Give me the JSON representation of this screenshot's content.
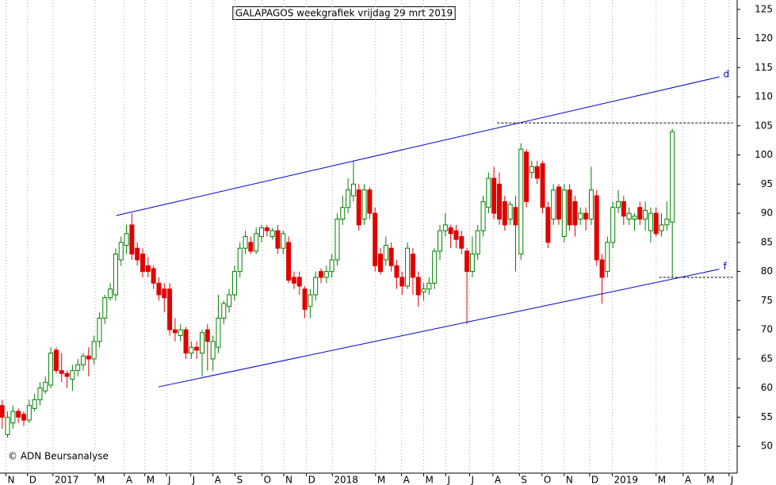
{
  "chart_data": {
    "type": "candlestick",
    "title": "GALAPAGOS weekgrafiek vrijdag 29 mrt 2019",
    "copyright": "© ADN Beursanalyse",
    "up_color": "#008000",
    "down_color": "#e00000",
    "line_color": "#0000cc",
    "grid": true,
    "xlim": [
      -0.4,
      136
    ],
    "xticks": [
      {
        "value": 0.7,
        "label": "N"
      },
      {
        "value": 4.7,
        "label": "D"
      },
      {
        "value": 9.4,
        "label": "2017"
      },
      {
        "value": 17.2,
        "label": "M"
      },
      {
        "value": 22.6,
        "label": "A"
      },
      {
        "value": 26.4,
        "label": "M"
      },
      {
        "value": 30.4,
        "label": "J"
      },
      {
        "value": 34.9,
        "label": "J"
      },
      {
        "value": 39,
        "label": "A"
      },
      {
        "value": 43.1,
        "label": "S"
      },
      {
        "value": 48.1,
        "label": "O"
      },
      {
        "value": 52.1,
        "label": "N"
      },
      {
        "value": 56.3,
        "label": "D"
      },
      {
        "value": 61.1,
        "label": "2018"
      },
      {
        "value": 69.1,
        "label": "M"
      },
      {
        "value": 73.9,
        "label": "A"
      },
      {
        "value": 78,
        "label": "M"
      },
      {
        "value": 82.1,
        "label": "J"
      },
      {
        "value": 86.5,
        "label": "J"
      },
      {
        "value": 90.8,
        "label": "A"
      },
      {
        "value": 95.7,
        "label": "S"
      },
      {
        "value": 99.9,
        "label": "O"
      },
      {
        "value": 104,
        "label": "N"
      },
      {
        "value": 108.7,
        "label": "D"
      },
      {
        "value": 112.9,
        "label": "2019"
      },
      {
        "value": 121,
        "label": "M"
      },
      {
        "value": 126,
        "label": "A"
      },
      {
        "value": 130,
        "label": "M"
      },
      {
        "value": 134.5,
        "label": "J"
      }
    ],
    "ylim": [
      45.4,
      126.6
    ],
    "yticks": [
      50,
      55,
      60,
      65,
      70,
      75,
      80,
      85,
      90,
      95,
      100,
      105,
      110,
      115,
      120,
      125
    ],
    "open": [
      57,
      52,
      54,
      56,
      55.5,
      54.5,
      56.5,
      58,
      59.5,
      60.5,
      66.5,
      63,
      62.5,
      61.5,
      63,
      64,
      65.5,
      65,
      68,
      72,
      75.5,
      76,
      82,
      84.5,
      88,
      84,
      83,
      81,
      80.5,
      78,
      77,
      77,
      70,
      69,
      70,
      66,
      67,
      66,
      70,
      65,
      67,
      72,
      74,
      76,
      80,
      84,
      85,
      83.5,
      86,
      87.5,
      86,
      87,
      84,
      85,
      79,
      79,
      77,
      74,
      76,
      80,
      79,
      80,
      82,
      89,
      91,
      93,
      94,
      89,
      94,
      90,
      83,
      82,
      84,
      81,
      79,
      77.5,
      83,
      79,
      76.5,
      77,
      78,
      83.5,
      87,
      87.5,
      87,
      86,
      83.5,
      80,
      83,
      87,
      91,
      96,
      95,
      92,
      89,
      91,
      83,
      100.5,
      97,
      98,
      98.5,
      91,
      89,
      94.5,
      86,
      94,
      92,
      89,
      90,
      89,
      93,
      82,
      80,
      85,
      91,
      92,
      89,
      89,
      91,
      89,
      87,
      90,
      87,
      88,
      88.5
    ],
    "high": [
      58,
      56,
      57,
      56.5,
      56,
      58,
      59,
      61,
      62,
      67,
      67,
      66,
      63,
      64,
      65,
      66,
      67,
      69,
      73,
      76,
      78,
      84,
      86,
      88,
      90,
      85,
      84,
      82.5,
      81,
      79,
      78,
      78,
      72,
      71,
      70.5,
      68,
      68,
      70,
      71,
      69,
      76,
      75,
      77,
      81,
      85,
      87,
      86,
      87.5,
      88,
      88,
      87.5,
      88,
      87,
      86,
      80,
      80,
      77.5,
      77,
      80,
      80.5,
      81,
      83,
      90,
      93,
      96,
      99,
      95,
      95,
      94.5,
      91,
      84,
      86,
      85,
      82,
      80,
      85,
      84,
      80,
      78,
      79,
      84,
      88,
      90,
      88,
      88,
      87,
      84,
      86,
      88,
      93,
      97,
      98,
      97,
      93,
      92,
      93,
      102,
      101,
      99,
      99,
      99,
      92,
      95,
      95,
      95,
      95,
      93,
      91,
      91,
      98,
      94,
      83,
      86,
      92,
      94,
      93,
      91,
      90,
      92,
      92,
      91,
      91,
      90,
      92,
      104.5
    ],
    "low": [
      53,
      51.5,
      53,
      54,
      53.5,
      54,
      56,
      57,
      59,
      60,
      62.5,
      61,
      60,
      59.5,
      62,
      63,
      62,
      64,
      67,
      71,
      75,
      75,
      81,
      83,
      82,
      81,
      79,
      79,
      77,
      75,
      73,
      69,
      68,
      68,
      65,
      65,
      65,
      62,
      63,
      63,
      66,
      71,
      73,
      75,
      79,
      83,
      83,
      83,
      85,
      86,
      85.5,
      83,
      83,
      78,
      77,
      76,
      72,
      72,
      75,
      78,
      78,
      79,
      81,
      88,
      90,
      92,
      87,
      88,
      89,
      80,
      79.5,
      81,
      80,
      77,
      76,
      77,
      76,
      74,
      75,
      76,
      77,
      82,
      86,
      84,
      84,
      83,
      71,
      79,
      82,
      86,
      90,
      89,
      88,
      87,
      88,
      80,
      82,
      91,
      96,
      95,
      90,
      84,
      88,
      88,
      85,
      87,
      86,
      88,
      87,
      88,
      81,
      74.5,
      79,
      84,
      90,
      88,
      88,
      87,
      88,
      87,
      85,
      86,
      86,
      87,
      79
    ],
    "close": [
      55,
      55,
      56,
      55,
      54.5,
      57,
      58,
      60,
      61,
      66,
      63,
      62.5,
      62,
      63,
      64,
      65.5,
      65,
      68,
      72,
      75.5,
      77,
      83,
      85,
      86.5,
      83,
      82,
      80,
      80,
      78,
      76,
      75.5,
      70,
      69.5,
      70,
      66,
      67,
      66.5,
      69.5,
      68,
      68,
      72,
      74.5,
      76,
      80,
      84,
      86,
      83.5,
      86.5,
      87.5,
      87,
      87,
      84,
      86.5,
      78.5,
      78,
      77.5,
      73.5,
      76,
      79,
      79,
      80,
      82,
      89,
      91,
      94,
      95,
      88,
      94,
      90,
      81,
      80,
      84.5,
      81,
      79,
      77.5,
      84,
      79,
      76,
      77,
      78,
      83.5,
      87,
      88,
      86.5,
      85.5,
      84,
      80,
      83,
      87,
      92,
      96,
      90,
      89,
      88,
      91.5,
      88,
      101,
      92,
      98,
      96,
      91,
      85,
      94,
      89,
      94,
      88,
      88,
      90,
      89,
      94,
      82,
      79,
      85,
      91,
      92,
      89.5,
      90,
      89.5,
      89,
      90.5,
      90,
      86.5,
      88,
      89,
      104
    ],
    "trendlines": [
      {
        "label": "d",
        "x": [
          21.1,
          132.7
        ],
        "y": [
          89.6,
          113.4
        ]
      },
      {
        "label": "f",
        "x": [
          28.9,
          132.7
        ],
        "y": [
          60.2,
          80.4
        ]
      }
    ],
    "levels": [
      {
        "y": 105.5,
        "x": [
          91.6,
          135.2
        ]
      },
      {
        "y": 79,
        "x": [
          121.6,
          135.2
        ]
      }
    ]
  }
}
